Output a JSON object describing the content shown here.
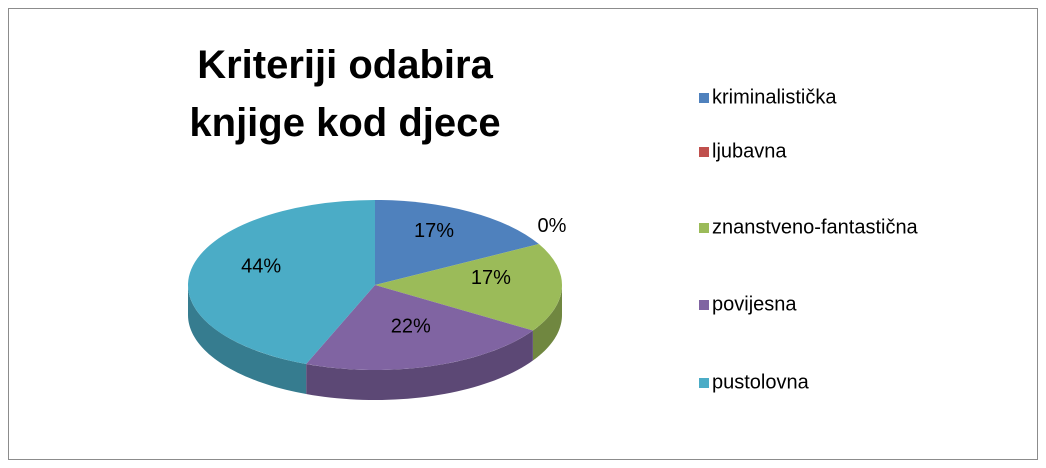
{
  "chart_data": {
    "type": "pie",
    "title": "Kriteriji odabira knjige kod djece",
    "categories": [
      "kriminalistička",
      "ljubavna",
      "znanstveno-fantastična",
      "povijesna",
      "pustolovna"
    ],
    "values": [
      17,
      0,
      17,
      22,
      44
    ],
    "value_labels": [
      "17%",
      "0%",
      "17%",
      "22%",
      "44%"
    ],
    "colors": [
      "#4f81bd",
      "#c0504d",
      "#9bbb59",
      "#8064a2",
      "#4bacc6"
    ],
    "legend": "right"
  }
}
